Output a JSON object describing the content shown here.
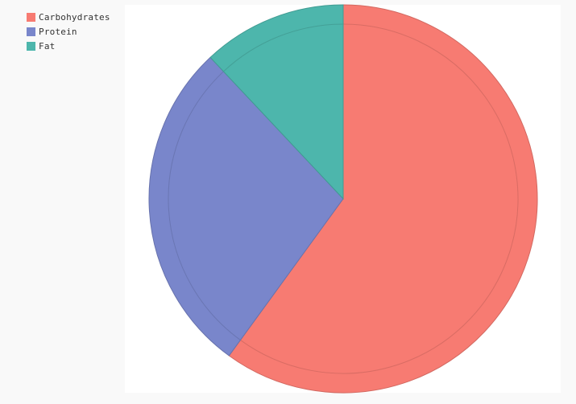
{
  "chart_data": {
    "type": "pie",
    "title": "",
    "categories": [
      "Carbohydrates",
      "Protein",
      "Fat"
    ],
    "values": [
      60,
      28,
      12
    ],
    "colors": [
      "#f77b72",
      "#7986cb",
      "#4db6ac"
    ],
    "legend_position": "top-left"
  }
}
